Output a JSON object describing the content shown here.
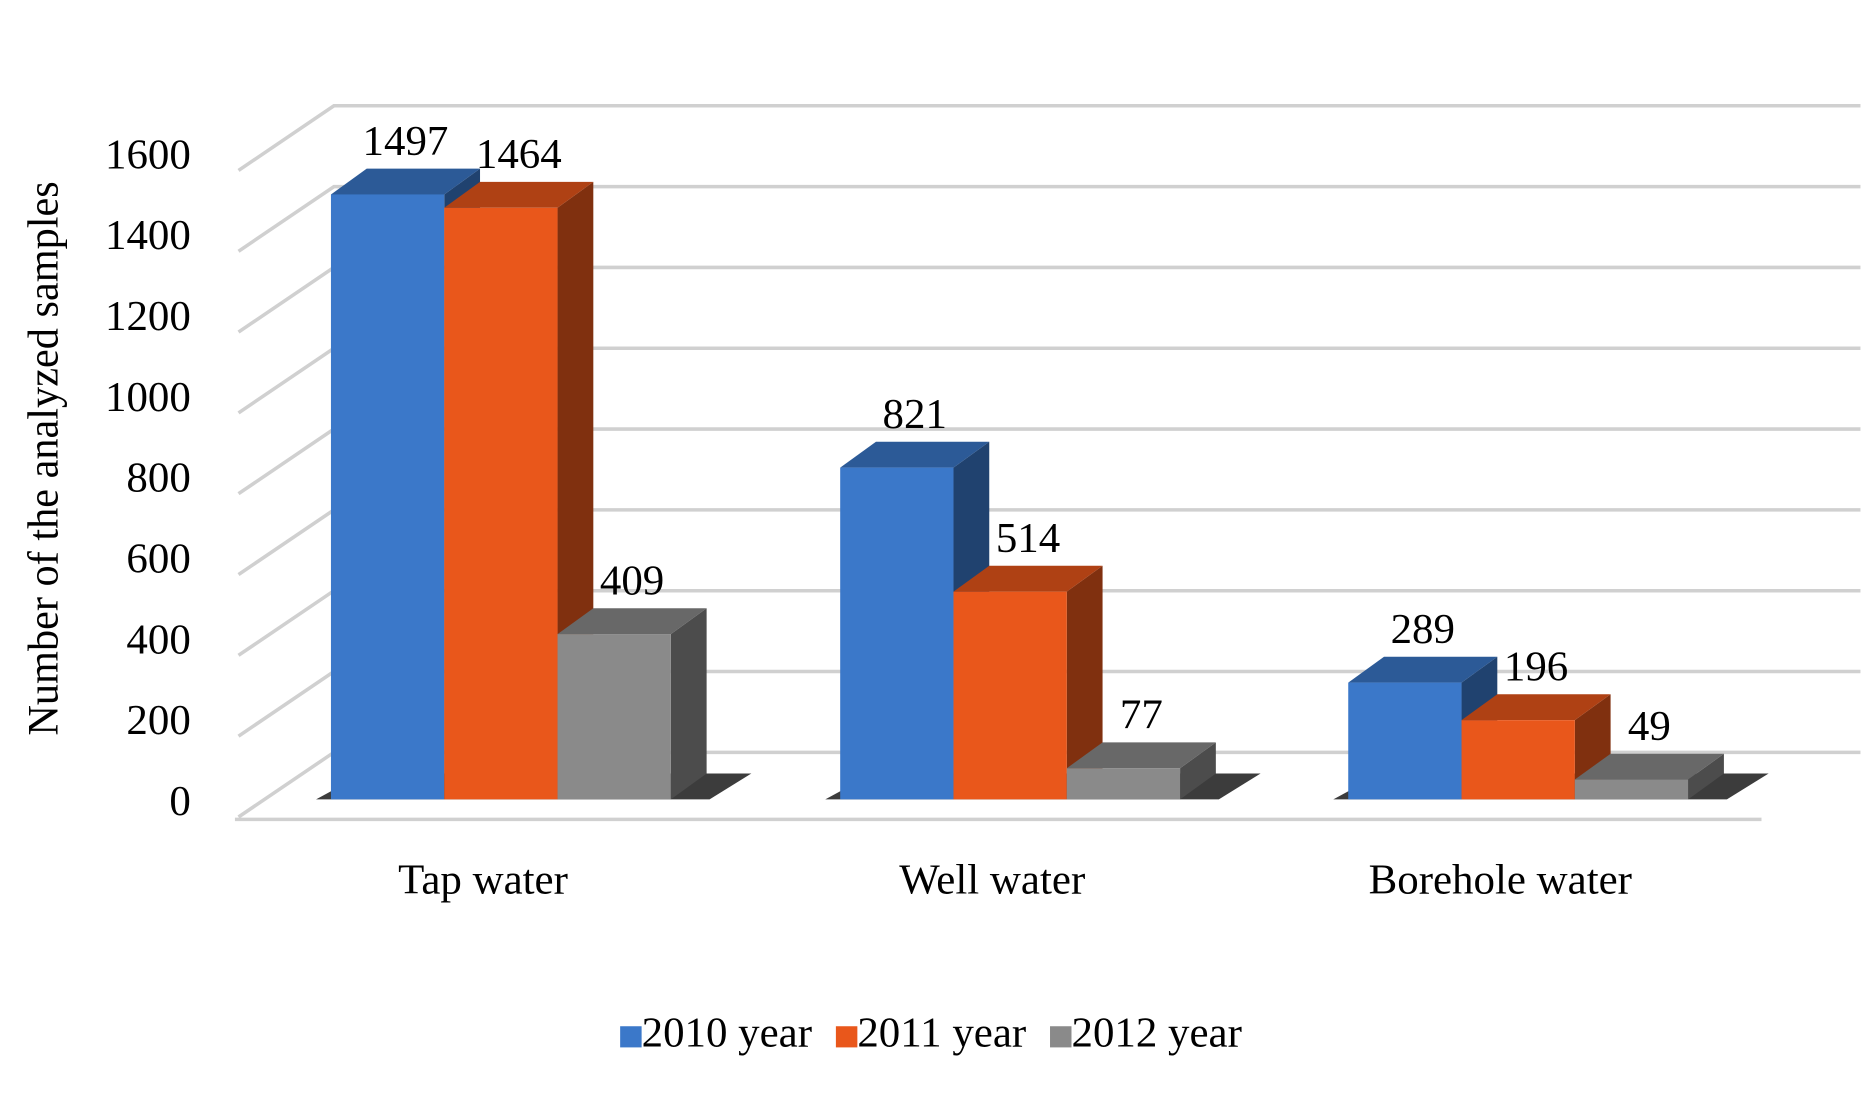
{
  "chart_data": {
    "type": "bar3d",
    "y_label": "Number of the analyzed samples",
    "categories": [
      "Tap water",
      "Well water",
      "Borehole water"
    ],
    "series": [
      {
        "name": "2010 year",
        "color": "#3b78c9",
        "values": [
          1497,
          821,
          289
        ]
      },
      {
        "name": "2011 year",
        "color": "#e9571b",
        "values": [
          1464,
          514,
          196
        ]
      },
      {
        "name": "2012 year",
        "color": "#8a8a8a",
        "values": [
          409,
          77,
          49
        ]
      }
    ],
    "ylim": [
      0,
      1600
    ],
    "yticks": [
      0,
      200,
      400,
      600,
      800,
      1000,
      1200,
      1400,
      1600
    ],
    "grid": true,
    "legend": "bottom"
  }
}
